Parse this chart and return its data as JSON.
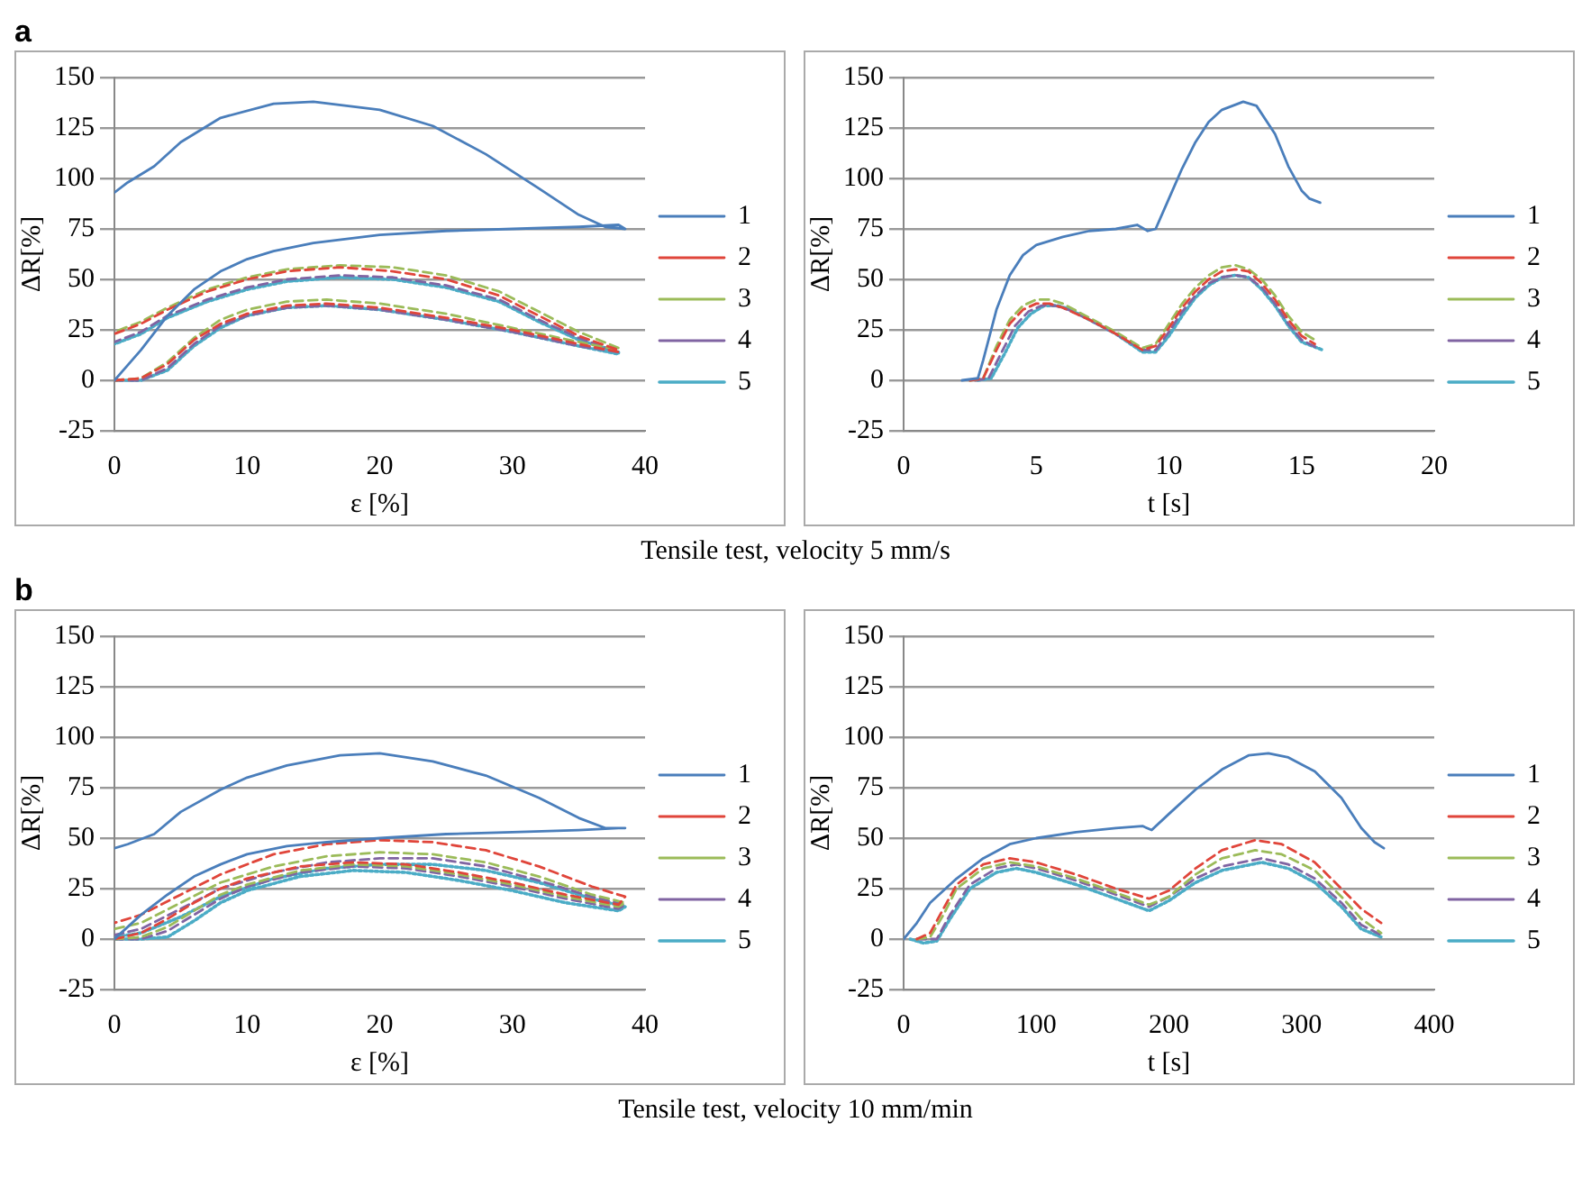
{
  "chart_data": [
    {
      "type": "line",
      "title": "a",
      "xlabel": "ε [%]",
      "ylabel": "ΔR[%]",
      "xlim": [
        0,
        40
      ],
      "xticks": [
        0,
        10,
        20,
        30,
        40
      ],
      "ylim": [
        -25,
        150
      ],
      "yticks": [
        -25,
        0,
        25,
        50,
        75,
        100,
        125,
        150
      ],
      "grid": "y",
      "legend": "right",
      "marker": "none",
      "annotations": [
        "Tensile test, velocity 5 mm/s"
      ],
      "series": [
        {
          "name": "1",
          "color": "#4a7ebb",
          "line_style": "solid",
          "x": [
            0,
            2,
            4,
            6,
            8,
            10,
            12,
            15,
            20,
            25,
            30,
            35,
            38,
            38.5,
            37,
            35,
            32,
            28,
            24,
            20,
            15,
            12,
            8,
            5,
            3,
            1,
            0
          ],
          "values": [
            0,
            15,
            32,
            45,
            54,
            60,
            64,
            68,
            72,
            74,
            75,
            76,
            77,
            75,
            76,
            82,
            95,
            112,
            126,
            134,
            138,
            137,
            130,
            118,
            106,
            98,
            93
          ]
        },
        {
          "name": "2",
          "color": "#e0453a",
          "line_style": "dashed",
          "x": [
            0,
            2,
            4,
            6,
            8,
            10,
            13,
            16,
            20,
            25,
            30,
            35,
            38,
            38,
            35,
            32,
            29,
            25,
            21,
            17,
            13,
            10,
            7,
            4,
            2,
            0
          ],
          "values": [
            0,
            1,
            8,
            20,
            28,
            33,
            37,
            38,
            36,
            31,
            25,
            18,
            14,
            15,
            22,
            32,
            42,
            50,
            54,
            56,
            54,
            50,
            44,
            35,
            28,
            23
          ]
        },
        {
          "name": "3",
          "color": "#9bbb59",
          "line_style": "dashed",
          "x": [
            0,
            2,
            4,
            6,
            8,
            10,
            13,
            16,
            20,
            25,
            30,
            35,
            38,
            38,
            35,
            32,
            29,
            25,
            21,
            17,
            13,
            10,
            7,
            4,
            2,
            0
          ],
          "values": [
            0,
            1,
            9,
            21,
            30,
            35,
            39,
            40,
            38,
            33,
            26,
            19,
            15,
            16,
            24,
            34,
            44,
            52,
            56,
            57,
            55,
            51,
            45,
            36,
            29,
            24
          ]
        },
        {
          "name": "4",
          "color": "#8064a2",
          "line_style": "dashed",
          "x": [
            0,
            2,
            4,
            6,
            8,
            10,
            13,
            16,
            20,
            25,
            30,
            35,
            38,
            38,
            35,
            32,
            29,
            25,
            21,
            17,
            13,
            10,
            7,
            4,
            2,
            0
          ],
          "values": [
            0,
            0,
            6,
            18,
            27,
            32,
            36,
            37,
            35,
            30,
            24,
            17,
            14,
            14,
            21,
            30,
            40,
            47,
            51,
            52,
            50,
            46,
            40,
            32,
            24,
            19
          ]
        },
        {
          "name": "5",
          "color": "#4bacc6",
          "line_style": "dotted",
          "x": [
            0,
            2,
            4,
            6,
            8,
            10,
            13,
            16,
            20,
            25,
            30,
            35,
            38,
            38,
            35,
            32,
            29,
            25,
            21,
            17,
            13,
            10,
            7,
            4,
            2,
            0
          ],
          "values": [
            0,
            0,
            5,
            17,
            26,
            32,
            36,
            37,
            35,
            30,
            24,
            17,
            13,
            14,
            20,
            29,
            39,
            46,
            50,
            51,
            49,
            45,
            39,
            31,
            23,
            18
          ]
        }
      ]
    },
    {
      "type": "line",
      "xlabel": "t [s]",
      "ylabel": "ΔR[%]",
      "xlim": [
        0,
        20
      ],
      "xticks": [
        0,
        5,
        10,
        15,
        20
      ],
      "ylim": [
        -25,
        150
      ],
      "yticks": [
        -25,
        0,
        25,
        50,
        75,
        100,
        125,
        150
      ],
      "grid": "y",
      "legend": "right",
      "marker": "none",
      "series": [
        {
          "name": "1",
          "color": "#4a7ebb",
          "line_style": "solid",
          "x": [
            2.2,
            2.8,
            3,
            3.5,
            4,
            4.5,
            5,
            6,
            7,
            8,
            8.8,
            9.2,
            9.5,
            10,
            10.5,
            11,
            11.5,
            12,
            12.8,
            13.3,
            14,
            14.5,
            15,
            15.3,
            15.7
          ],
          "values": [
            0,
            1,
            10,
            35,
            52,
            62,
            67,
            71,
            74,
            75,
            77,
            74,
            75,
            90,
            105,
            118,
            128,
            134,
            138,
            136,
            122,
            106,
            94,
            90,
            88
          ]
        },
        {
          "name": "2",
          "color": "#e0453a",
          "line_style": "dashed",
          "x": [
            2.5,
            3,
            3.5,
            4,
            4.5,
            5,
            5.5,
            6,
            7,
            8,
            9,
            9.5,
            10,
            10.5,
            11,
            11.5,
            12,
            12.5,
            13,
            13.5,
            14,
            14.5,
            15,
            15.5
          ],
          "values": [
            0,
            1,
            15,
            28,
            35,
            38,
            38,
            36,
            30,
            23,
            15,
            17,
            26,
            36,
            44,
            50,
            54,
            55,
            54,
            48,
            40,
            30,
            22,
            18
          ]
        },
        {
          "name": "3",
          "color": "#9bbb59",
          "line_style": "dashed",
          "x": [
            2.5,
            3,
            3.5,
            4,
            4.5,
            5,
            5.5,
            6,
            7,
            8,
            9,
            9.5,
            10,
            10.5,
            11,
            11.5,
            12,
            12.5,
            13,
            13.5,
            14,
            14.5,
            15,
            15.5
          ],
          "values": [
            0,
            1,
            17,
            30,
            37,
            40,
            40,
            38,
            31,
            24,
            16,
            18,
            28,
            38,
            46,
            52,
            56,
            57,
            55,
            50,
            42,
            32,
            24,
            20
          ]
        },
        {
          "name": "4",
          "color": "#8064a2",
          "line_style": "dashed",
          "x": [
            2.7,
            3.2,
            3.7,
            4.2,
            4.7,
            5.2,
            5.7,
            6.2,
            7,
            8,
            9,
            9.5,
            10,
            10.5,
            11,
            11.5,
            12,
            12.5,
            13,
            13.5,
            14,
            14.5,
            15,
            15.6
          ],
          "values": [
            0,
            1,
            14,
            27,
            34,
            37,
            37,
            35,
            30,
            23,
            15,
            15,
            24,
            34,
            42,
            48,
            51,
            52,
            51,
            46,
            38,
            28,
            20,
            16
          ]
        },
        {
          "name": "5",
          "color": "#4bacc6",
          "line_style": "dotted",
          "x": [
            2.8,
            3.3,
            3.8,
            4.3,
            4.8,
            5.3,
            5.8,
            6.3,
            7,
            8,
            9,
            9.5,
            10,
            10.5,
            11,
            11.5,
            12,
            12.5,
            13,
            13.5,
            14,
            14.5,
            15,
            15.8
          ],
          "values": [
            0,
            1,
            13,
            26,
            33,
            37,
            37,
            35,
            30,
            23,
            14,
            14,
            22,
            32,
            41,
            47,
            51,
            52,
            51,
            45,
            37,
            27,
            19,
            15
          ]
        }
      ]
    },
    {
      "type": "line",
      "title": "b",
      "xlabel": "ε [%]",
      "ylabel": "ΔR[%]",
      "xlim": [
        0,
        40
      ],
      "xticks": [
        0,
        10,
        20,
        30,
        40
      ],
      "ylim": [
        -25,
        150
      ],
      "yticks": [
        -25,
        0,
        25,
        50,
        75,
        100,
        125,
        150
      ],
      "grid": "y",
      "legend": "right",
      "marker": "none",
      "annotations": [
        "Tensile test, velocity 10 mm/min"
      ],
      "series": [
        {
          "name": "1",
          "color": "#4a7ebb",
          "line_style": "solid",
          "x": [
            0,
            2,
            4,
            6,
            8,
            10,
            13,
            16,
            20,
            25,
            30,
            35,
            38,
            38.5,
            37,
            35,
            32,
            28,
            24,
            20,
            17,
            13,
            10,
            8,
            5,
            3,
            1,
            0
          ],
          "values": [
            0,
            12,
            22,
            31,
            37,
            42,
            46,
            48,
            50,
            52,
            53,
            54,
            55,
            55,
            55,
            60,
            70,
            81,
            88,
            92,
            91,
            86,
            80,
            74,
            63,
            52,
            47,
            45
          ]
        },
        {
          "name": "2",
          "color": "#e0453a",
          "line_style": "dashed",
          "x": [
            0,
            2,
            4,
            6,
            8,
            10,
            14,
            18,
            22,
            26,
            30,
            34,
            38,
            38.5,
            36,
            32,
            28,
            24,
            20,
            16,
            12,
            8,
            5,
            2,
            0
          ],
          "values": [
            0,
            3,
            10,
            18,
            25,
            30,
            36,
            38,
            37,
            33,
            28,
            22,
            17,
            21,
            26,
            36,
            44,
            48,
            49,
            47,
            42,
            32,
            22,
            12,
            8
          ]
        },
        {
          "name": "3",
          "color": "#9bbb59",
          "line_style": "dashed",
          "x": [
            0,
            2,
            4,
            6,
            8,
            10,
            14,
            18,
            22,
            26,
            30,
            34,
            38,
            38.5,
            36,
            32,
            28,
            24,
            20,
            16,
            12,
            8,
            5,
            2,
            0
          ],
          "values": [
            0,
            1,
            6,
            14,
            22,
            27,
            34,
            37,
            36,
            32,
            27,
            21,
            16,
            18,
            22,
            31,
            38,
            42,
            43,
            41,
            36,
            28,
            18,
            8,
            5
          ]
        },
        {
          "name": "4",
          "color": "#8064a2",
          "line_style": "dashed",
          "x": [
            0,
            2,
            4,
            6,
            8,
            10,
            14,
            18,
            22,
            26,
            30,
            34,
            38,
            38.5,
            36,
            32,
            28,
            24,
            20,
            16,
            12,
            8,
            5,
            2,
            0
          ],
          "values": [
            0,
            0,
            4,
            12,
            20,
            26,
            33,
            36,
            35,
            31,
            26,
            20,
            15,
            17,
            21,
            29,
            36,
            40,
            40,
            38,
            33,
            25,
            15,
            5,
            2
          ]
        },
        {
          "name": "5",
          "color": "#4bacc6",
          "line_style": "dotted",
          "x": [
            0,
            2,
            4,
            6,
            8,
            10,
            14,
            18,
            22,
            26,
            30,
            34,
            38,
            38.5,
            36,
            32,
            28,
            24,
            20,
            16,
            12,
            8,
            5,
            2,
            0
          ],
          "values": [
            0,
            0,
            1,
            9,
            18,
            24,
            31,
            34,
            33,
            29,
            24,
            18,
            14,
            16,
            20,
            28,
            34,
            37,
            37,
            35,
            30,
            21,
            11,
            3,
            1
          ]
        }
      ]
    },
    {
      "type": "line",
      "xlabel": "t [s]",
      "ylabel": "ΔR[%]",
      "xlim": [
        0,
        400
      ],
      "xticks": [
        0,
        100,
        200,
        300,
        400
      ],
      "ylim": [
        -25,
        150
      ],
      "yticks": [
        -25,
        0,
        25,
        50,
        75,
        100,
        125,
        150
      ],
      "grid": "y",
      "legend": "right",
      "marker": "none",
      "series": [
        {
          "name": "1",
          "color": "#4a7ebb",
          "line_style": "solid",
          "x": [
            0,
            10,
            20,
            40,
            60,
            80,
            100,
            130,
            160,
            180,
            187,
            200,
            220,
            240,
            260,
            275,
            290,
            310,
            330,
            345,
            355,
            362
          ],
          "values": [
            0,
            8,
            18,
            30,
            40,
            47,
            50,
            53,
            55,
            56,
            54,
            62,
            74,
            84,
            91,
            92,
            90,
            83,
            70,
            55,
            48,
            45
          ]
        },
        {
          "name": "2",
          "color": "#e0453a",
          "line_style": "dashed",
          "x": [
            10,
            20,
            30,
            40,
            60,
            80,
            100,
            130,
            160,
            185,
            200,
            220,
            240,
            265,
            285,
            310,
            330,
            345,
            360
          ],
          "values": [
            0,
            3,
            15,
            27,
            37,
            40,
            38,
            32,
            25,
            20,
            24,
            35,
            44,
            49,
            47,
            38,
            25,
            15,
            8
          ]
        },
        {
          "name": "3",
          "color": "#9bbb59",
          "line_style": "dashed",
          "x": [
            10,
            20,
            30,
            40,
            60,
            80,
            100,
            130,
            160,
            185,
            200,
            220,
            240,
            265,
            285,
            310,
            330,
            345,
            360
          ],
          "values": [
            0,
            1,
            12,
            25,
            35,
            38,
            36,
            30,
            23,
            17,
            21,
            32,
            40,
            44,
            42,
            34,
            21,
            10,
            3
          ]
        },
        {
          "name": "4",
          "color": "#8064a2",
          "line_style": "dashed",
          "x": [
            10,
            25,
            35,
            50,
            70,
            85,
            100,
            130,
            160,
            185,
            200,
            220,
            240,
            270,
            290,
            310,
            330,
            345,
            360
          ],
          "values": [
            0,
            0,
            12,
            27,
            35,
            37,
            35,
            29,
            22,
            16,
            21,
            30,
            36,
            40,
            37,
            30,
            18,
            7,
            2
          ]
        },
        {
          "name": "5",
          "color": "#4bacc6",
          "line_style": "dotted",
          "x": [
            5,
            15,
            25,
            35,
            50,
            70,
            85,
            100,
            130,
            160,
            185,
            200,
            220,
            240,
            270,
            290,
            310,
            330,
            345,
            360
          ],
          "values": [
            0,
            -2,
            -1,
            10,
            25,
            33,
            35,
            33,
            27,
            20,
            14,
            19,
            28,
            34,
            38,
            35,
            28,
            16,
            5,
            1
          ]
        }
      ]
    }
  ]
}
